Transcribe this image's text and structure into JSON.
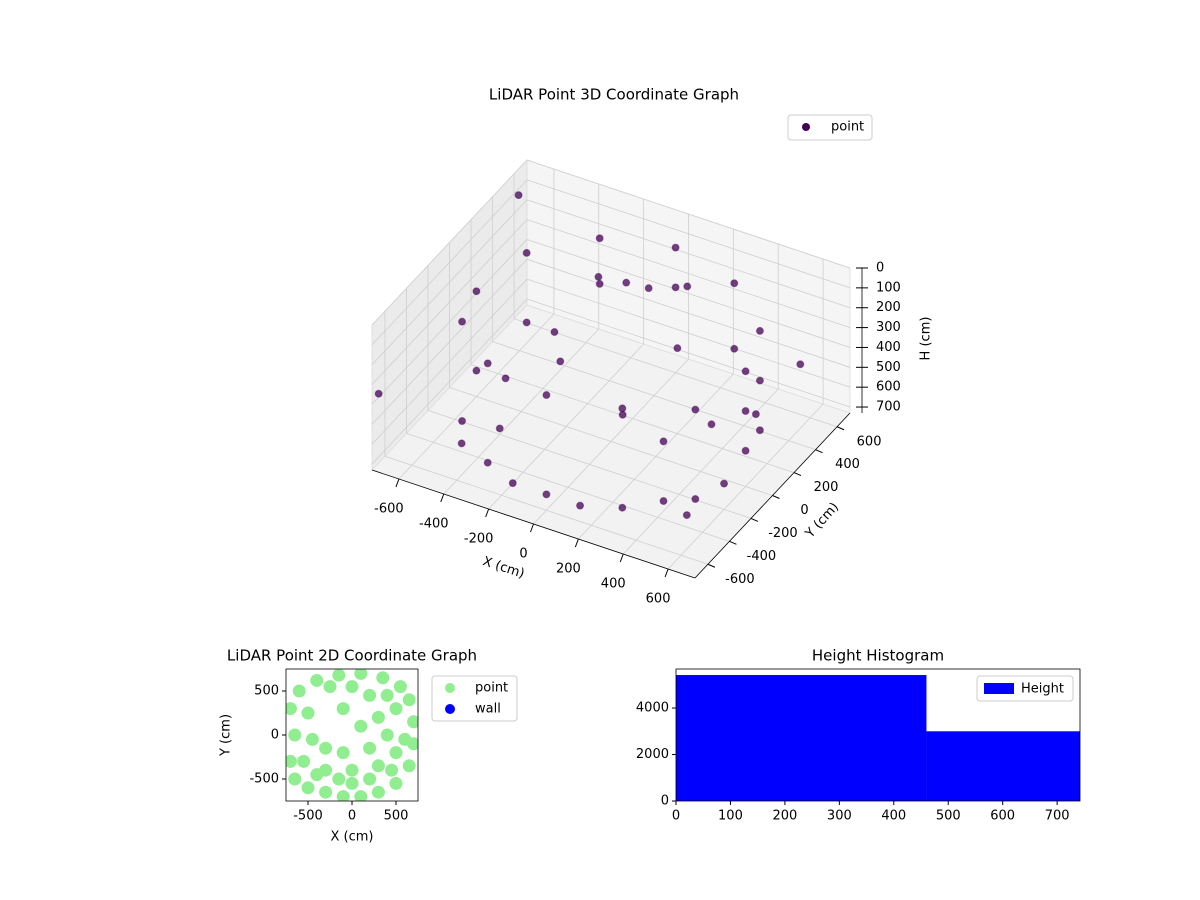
{
  "chart_data": [
    {
      "type": "scatter3d",
      "title": "LiDAR Point 3D Coordinate Graph",
      "x_label": "X (cm)",
      "y_label": "Y (cm)",
      "z_label": "H (cm)",
      "xlim": [
        -720,
        720
      ],
      "ylim": [
        -720,
        720
      ],
      "zlim": [
        730,
        0
      ],
      "xticks": [
        -600,
        -400,
        -200,
        0,
        200,
        400,
        600
      ],
      "yticks": [
        -600,
        -400,
        -200,
        0,
        200,
        400,
        600
      ],
      "zticks": [
        0,
        100,
        200,
        300,
        400,
        500,
        600,
        700
      ],
      "grid": true,
      "legend": "upper right",
      "series": [
        {
          "name": "point",
          "color": "#440154",
          "x": [
            600,
            600,
            600,
            520,
            520,
            520,
            300,
            300,
            0,
            0,
            -300,
            -300,
            -520,
            -520,
            -600,
            -600,
            -520,
            -520,
            -300,
            -300,
            0,
            0,
            300,
            300,
            520,
            520,
            -200,
            -100,
            0,
            -300,
            -250,
            100,
            200,
            -400,
            400,
            650,
            -700,
            -700,
            700,
            -350,
            600,
            450,
            450,
            150,
            -450,
            -150,
            100,
            550
          ],
          "y": [
            0,
            0,
            0,
            300,
            300,
            300,
            520,
            520,
            600,
            600,
            520,
            520,
            300,
            300,
            0,
            0,
            -300,
            -300,
            -520,
            -520,
            -600,
            -600,
            -520,
            -520,
            -300,
            -300,
            300,
            350,
            350,
            100,
            50,
            -100,
            200,
            -200,
            100,
            -650,
            600,
            -700,
            300,
            -250,
            -200,
            -450,
            -450,
            -600,
            -450,
            -600,
            500,
            200
          ],
          "z": [
            150,
            350,
            550,
            150,
            400,
            650,
            120,
            450,
            100,
            300,
            120,
            350,
            150,
            500,
            200,
            600,
            150,
            650,
            150,
            650,
            150,
            650,
            150,
            650,
            200,
            650,
            150,
            170,
            160,
            350,
            450,
            500,
            300,
            700,
            550,
            480,
            100,
            350,
            250,
            400,
            600,
            300,
            600,
            650,
            650,
            650,
            200,
            500
          ]
        }
      ]
    },
    {
      "type": "scatter",
      "title": "LiDAR Point 2D Coordinate Graph",
      "x_label": "X (cm)",
      "y_label": "Y (cm)",
      "xlim": [
        -750,
        750
      ],
      "ylim": [
        -750,
        750
      ],
      "xticks": [
        -500,
        0,
        500
      ],
      "yticks": [
        -500,
        0,
        500
      ],
      "legend": "outside right",
      "series": [
        {
          "name": "point",
          "color": "#90ee90",
          "x": [
            -650,
            -500,
            -300,
            -100,
            100,
            300,
            500,
            650,
            700,
            700,
            650,
            550,
            350,
            100,
            -150,
            -400,
            -600,
            -700,
            -700,
            -550,
            -300,
            0,
            300,
            500,
            400,
            200,
            -100,
            -300,
            100,
            300,
            500,
            -450,
            -650,
            200,
            0,
            -250,
            400,
            -500,
            -100,
            0,
            200,
            -150,
            600,
            450,
            -400
          ],
          "y": [
            -500,
            -600,
            -650,
            -700,
            -700,
            -650,
            -550,
            -350,
            -100,
            150,
            400,
            550,
            650,
            700,
            680,
            620,
            500,
            300,
            -300,
            -300,
            -400,
            -400,
            -350,
            -200,
            0,
            -150,
            -200,
            -150,
            100,
            200,
            300,
            -50,
            0,
            450,
            550,
            550,
            450,
            250,
            300,
            -550,
            -500,
            -500,
            -50,
            -400,
            -450
          ]
        },
        {
          "name": "wall",
          "color": "#0000ff",
          "x": [],
          "y": []
        }
      ]
    },
    {
      "type": "histogram",
      "title": "Height Histogram",
      "bins": [
        0,
        460,
        742
      ],
      "counts": [
        5420,
        3000
      ],
      "color": "#0000ff",
      "series_name": "Height",
      "legend": "upper right",
      "xlim": [
        0,
        742
      ],
      "ylim": [
        0,
        5680
      ],
      "xticks": [
        0,
        100,
        200,
        300,
        400,
        500,
        600,
        700
      ],
      "yticks": [
        0,
        2000,
        4000
      ]
    }
  ]
}
